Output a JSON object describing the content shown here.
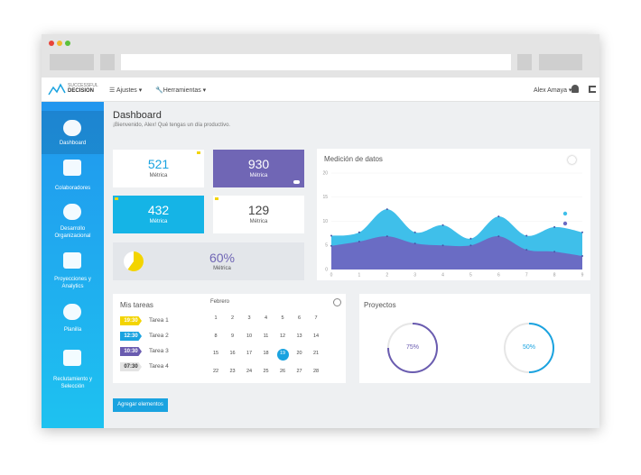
{
  "header": {
    "logo_line1": "SUCCESSFUL",
    "logo_line2": "DECISION",
    "menu": [
      "Ajustes",
      "Herramientas"
    ],
    "user": "Alex Amaya"
  },
  "sidebar": [
    "Dashboard",
    "Colaboradores",
    "Desarrollo Organizacional",
    "Proyecciones y Analytics",
    "Planilla",
    "Reclutamiento y Selección"
  ],
  "page": {
    "title": "Dashboard",
    "subtitle": "¡Bienvenido, Alex! Qué tengas un día productivo."
  },
  "metrics": [
    {
      "value": 521,
      "label": "Métrica"
    },
    {
      "value": 930,
      "label": "Métrica"
    },
    {
      "value": 432,
      "label": "Métrica"
    },
    {
      "value": 129,
      "label": "Métrica"
    }
  ],
  "progress_metric": {
    "value": 60,
    "label": "60%",
    "caption": "Métrica"
  },
  "chart_data": {
    "type": "area",
    "title": "Medición de datos",
    "x": [
      0,
      1,
      2,
      3,
      4,
      5,
      6,
      7,
      8,
      9
    ],
    "series": [
      {
        "color": "#3fbfea",
        "values": [
          7,
          7.7,
          12.5,
          7.7,
          9.2,
          6.4,
          11,
          7,
          8.8,
          7.7
        ]
      },
      {
        "color": "#6a6cc4",
        "values": [
          4.9,
          5.8,
          6.9,
          5.4,
          5,
          5,
          6.9,
          4.1,
          3.7,
          2.8
        ]
      }
    ],
    "xlim": [
      0,
      9
    ],
    "xticks": [
      0,
      1,
      2,
      3,
      4,
      5,
      6,
      7,
      8,
      9
    ],
    "ylim": [
      0,
      20
    ],
    "yticks": [
      0,
      5,
      10,
      15,
      20
    ],
    "grid": true
  },
  "tasks": {
    "title": "Mis tareas",
    "items": [
      {
        "time": "19:30",
        "name": "Tarea 1",
        "color": "#f3d400"
      },
      {
        "time": "12:30",
        "name": "Tarea 2",
        "color": "#1aa3e0"
      },
      {
        "time": "10:30",
        "name": "Tarea 3",
        "color": "#6a5cb0"
      },
      {
        "time": "07:30",
        "name": "Tarea 4",
        "color": "#e4e4e4"
      }
    ]
  },
  "calendar": {
    "month": "Febrero",
    "days": [
      1,
      2,
      3,
      4,
      5,
      6,
      7,
      8,
      9,
      10,
      11,
      12,
      13,
      14,
      15,
      16,
      17,
      18,
      19,
      20,
      21,
      22,
      23,
      24,
      25,
      26,
      27,
      28
    ],
    "today": 19
  },
  "projects": {
    "title": "Proyectos",
    "items": [
      {
        "value": 75,
        "label": "75%",
        "color": "#6a5cb0"
      },
      {
        "value": 50,
        "label": "50%",
        "color": "#1aa3e0"
      }
    ]
  },
  "button": "Agregar elementos"
}
